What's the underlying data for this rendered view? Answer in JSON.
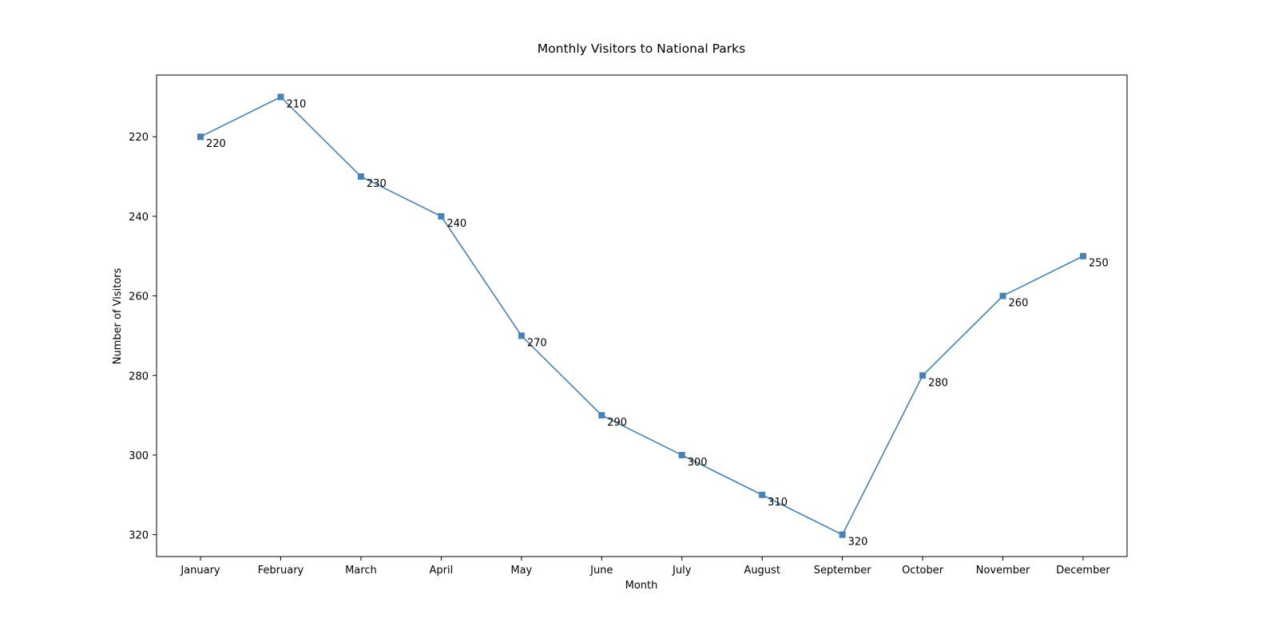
{
  "chart_data": {
    "type": "line",
    "title": "Monthly Visitors to National Parks",
    "xlabel": "Month",
    "ylabel": "Number of Visitors",
    "categories": [
      "January",
      "February",
      "March",
      "April",
      "May",
      "June",
      "July",
      "August",
      "September",
      "October",
      "November",
      "December"
    ],
    "series": [
      {
        "values": [
          220,
          210,
          230,
          240,
          270,
          290,
          300,
          310,
          320,
          280,
          260,
          250
        ],
        "color": "#4682b4",
        "marker": "square"
      }
    ],
    "data_labels": [
      "220",
      "210",
      "230",
      "240",
      "270",
      "290",
      "300",
      "310",
      "320",
      "280",
      "260",
      "250"
    ],
    "ylim": [
      204.5,
      325.5
    ],
    "y_inverted": true,
    "yticks": [
      220,
      240,
      260,
      280,
      300,
      320
    ],
    "ytick_labels": [
      "220",
      "240",
      "260",
      "280",
      "300",
      "320"
    ],
    "grid": false,
    "legend": "none"
  }
}
